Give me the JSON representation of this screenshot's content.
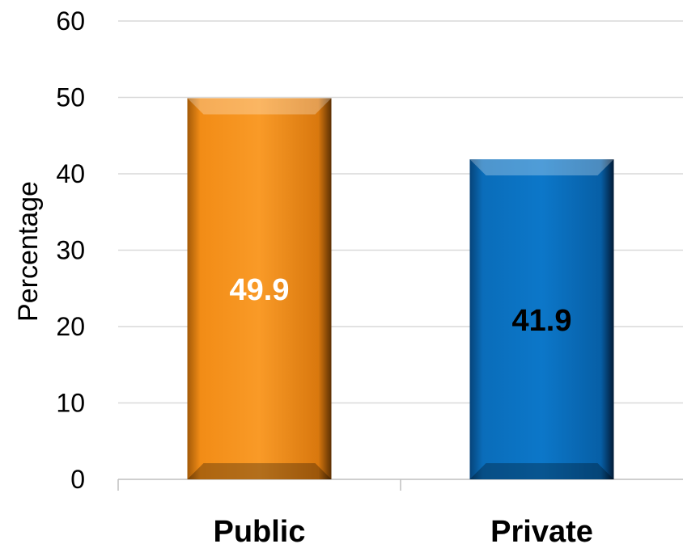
{
  "chart_data": {
    "type": "bar",
    "categories": [
      "Public",
      "Private"
    ],
    "values": [
      49.9,
      41.9
    ],
    "data_labels": [
      "49.9",
      "41.9"
    ],
    "title": "",
    "xlabel": "",
    "ylabel": "Percentage",
    "ylim": [
      0,
      60
    ],
    "yticks": [
      0,
      10,
      20,
      30,
      40,
      50,
      60
    ],
    "grid": true,
    "legend": "none",
    "colors": {
      "bars": [
        "#F7941D",
        "#0B72C4"
      ],
      "data_label_text": [
        "#FFFFFF",
        "#000000"
      ],
      "gridline": "#D9D9D9",
      "axis": "#BFBFBF"
    }
  }
}
